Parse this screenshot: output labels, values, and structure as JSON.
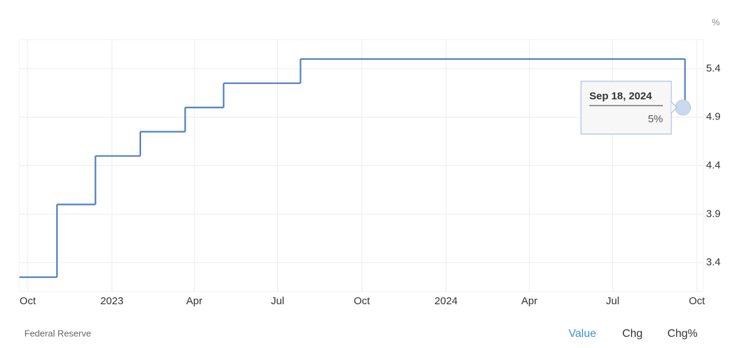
{
  "chart_data": {
    "type": "step-line",
    "unit": "%",
    "source": "Federal Reserve",
    "buttons": [
      "Value",
      "Chg",
      "Chg%"
    ],
    "active_button": "Value",
    "series": [
      {
        "color": "#4f7fbf",
        "x": [
          "2022-09-22",
          "2022-11-02",
          "2022-12-14",
          "2023-02-01",
          "2023-03-22",
          "2023-05-03",
          "2023-07-26",
          "2024-09-18"
        ],
        "values": [
          3.25,
          4.0,
          4.5,
          4.75,
          5.0,
          5.25,
          5.5,
          5.0
        ],
        "value_labels": [
          null,
          null,
          null,
          null,
          null,
          null,
          null,
          "5%"
        ]
      }
    ],
    "tooltip_title": "Sep 18, 2024",
    "xlim": [
      "2022-09-22",
      "2024-10-08"
    ],
    "xticks": [
      {
        "value": "2022-10-01",
        "label": "Oct"
      },
      {
        "value": "2023-01-01",
        "label": "2023"
      },
      {
        "value": "2023-04-01",
        "label": "Apr"
      },
      {
        "value": "2023-07-01",
        "label": "Jul"
      },
      {
        "value": "2023-10-01",
        "label": "Oct"
      },
      {
        "value": "2024-01-01",
        "label": "2024"
      },
      {
        "value": "2024-04-01",
        "label": "Apr"
      },
      {
        "value": "2024-07-01",
        "label": "Jul"
      },
      {
        "value": "2024-10-01",
        "label": "Oct"
      }
    ],
    "ylim": [
      3.1,
      5.7
    ],
    "yticks": [
      3.4,
      3.9,
      4.4,
      4.9,
      5.4
    ],
    "grid": true
  }
}
